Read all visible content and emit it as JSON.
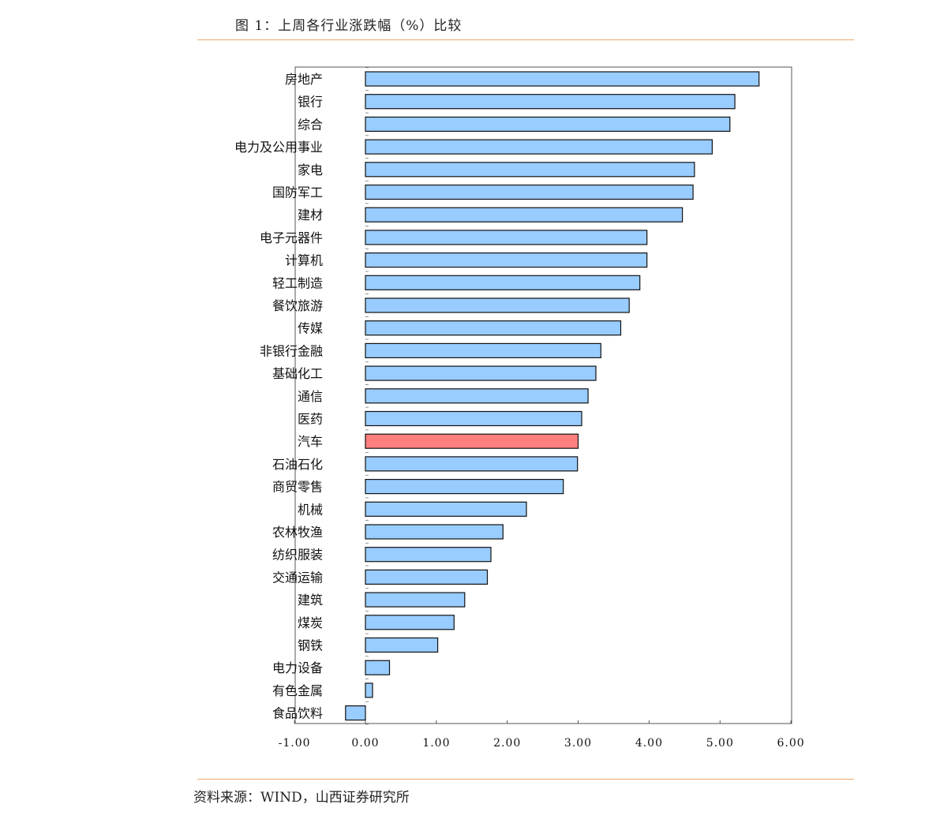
{
  "figure_title": "图 1：上周各行业涨跌幅（%）比较",
  "source_note": "资料来源：WIND，山西证券研究所",
  "colors": {
    "bar": "#99ccff",
    "highlight": "#ff7f7f",
    "negative_tick": "#e02020",
    "rule": "#f0a868"
  },
  "chart_data": {
    "type": "bar",
    "orientation": "horizontal",
    "title": "图 1：上周各行业涨跌幅（%）比较",
    "xlabel": "",
    "ylabel": "",
    "xlim": [
      -1,
      6
    ],
    "xticks": [
      "-1.00",
      "0.00",
      "1.00",
      "2.00",
      "3.00",
      "4.00",
      "5.00",
      "6.00"
    ],
    "highlight_category": "汽车",
    "categories": [
      "房地产",
      "银行",
      "综合",
      "电力及公用事业",
      "家电",
      "国防军工",
      "建材",
      "电子元器件",
      "计算机",
      "轻工制造",
      "餐饮旅游",
      "传媒",
      "非银行金融",
      "基础化工",
      "通信",
      "医药",
      "汽车",
      "石油石化",
      "商贸零售",
      "机械",
      "农林牧渔",
      "纺织服装",
      "交通运输",
      "建筑",
      "煤炭",
      "钢铁",
      "电力设备",
      "有色金属",
      "食品饮料"
    ],
    "values": [
      5.55,
      5.21,
      5.14,
      4.89,
      4.64,
      4.62,
      4.47,
      3.97,
      3.97,
      3.87,
      3.72,
      3.6,
      3.32,
      3.25,
      3.14,
      3.05,
      3.0,
      2.99,
      2.79,
      2.27,
      1.94,
      1.77,
      1.72,
      1.4,
      1.25,
      1.02,
      0.34,
      0.1,
      -0.28
    ]
  }
}
